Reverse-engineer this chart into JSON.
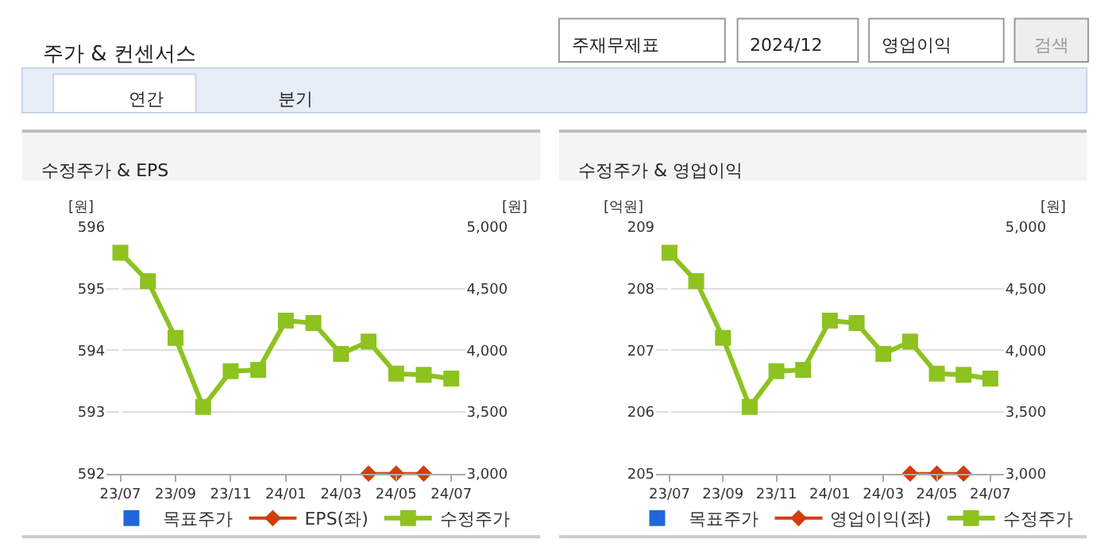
{
  "chart_data": [
    {
      "type": "other",
      "title": "주가 & 컨센서스",
      "annotations": [
        "주재무제표",
        "2024/12",
        "영업이익",
        "검색",
        "연간",
        "분기"
      ]
    },
    {
      "type": "line",
      "title": "수정주가 & EPS",
      "ylabel": "[원]",
      "y2label": "[원]",
      "categories": [
        "23/07",
        null,
        "23/09",
        null,
        "23/11",
        null,
        "24/01",
        null,
        "24/03",
        null,
        "24/05",
        null,
        "24/07"
      ],
      "series": [
        {
          "name": "목표주가",
          "type": "scatter",
          "color": "#2266dd",
          "marker": "square",
          "values": [
            null,
            null,
            null,
            null,
            null,
            null,
            null,
            null,
            null,
            null,
            null,
            null,
            null
          ]
        },
        {
          "name": "EPS(좌)",
          "type": "line",
          "color": "#d13d0f",
          "marker": "diamond",
          "values": [
            null,
            null,
            null,
            null,
            null,
            null,
            null,
            null,
            null,
            592,
            592,
            592,
            null
          ]
        },
        {
          "name": "수정주가",
          "type": "line",
          "color": "#8dc21f",
          "marker": "square",
          "axis": "y2",
          "values": [
            4790,
            4560,
            4100,
            3540,
            3830,
            3840,
            4240,
            4220,
            3970,
            4070,
            3810,
            3800,
            3770
          ]
        }
      ],
      "ylim": [
        592,
        596
      ],
      "yticks": [
        592,
        593,
        594,
        595,
        596
      ],
      "y2lim": [
        3000,
        5000
      ],
      "y2ticks": [
        {
          "value": 3000,
          "label": "3,000"
        },
        {
          "value": 3500,
          "label": "3,500"
        },
        {
          "value": 4000,
          "label": "4,000"
        },
        {
          "value": 4500,
          "label": "4,500"
        },
        {
          "value": 5000,
          "label": "5,000"
        }
      ],
      "grid": "y",
      "legend": "bottom"
    },
    {
      "type": "line",
      "title": "수정주가 & 영업이익",
      "ylabel": "[억원]",
      "y2label": "[원]",
      "categories": [
        "23/07",
        null,
        "23/09",
        null,
        "23/11",
        null,
        "24/01",
        null,
        "24/03",
        null,
        "24/05",
        null,
        "24/07"
      ],
      "series": [
        {
          "name": "목표주가",
          "type": "scatter",
          "color": "#2266dd",
          "marker": "square",
          "values": [
            null,
            null,
            null,
            null,
            null,
            null,
            null,
            null,
            null,
            null,
            null,
            null,
            null
          ]
        },
        {
          "name": "영업이익(좌)",
          "type": "line",
          "color": "#d13d0f",
          "marker": "diamond",
          "values": [
            null,
            null,
            null,
            null,
            null,
            null,
            null,
            null,
            null,
            205,
            205,
            205,
            null
          ]
        },
        {
          "name": "수정주가",
          "type": "line",
          "color": "#8dc21f",
          "marker": "square",
          "axis": "y2",
          "values": [
            4790,
            4560,
            4100,
            3540,
            3830,
            3840,
            4240,
            4220,
            3970,
            4070,
            3810,
            3800,
            3770
          ]
        }
      ],
      "ylim": [
        205,
        209
      ],
      "yticks": [
        205,
        206,
        207,
        208,
        209
      ],
      "y2lim": [
        3000,
        5000
      ],
      "y2ticks": [
        {
          "value": 3000,
          "label": "3,000"
        },
        {
          "value": 3500,
          "label": "3,500"
        },
        {
          "value": 4000,
          "label": "4,000"
        },
        {
          "value": 4500,
          "label": "4,500"
        },
        {
          "value": 5000,
          "label": "5,000"
        }
      ],
      "grid": "y",
      "legend": "bottom"
    }
  ]
}
